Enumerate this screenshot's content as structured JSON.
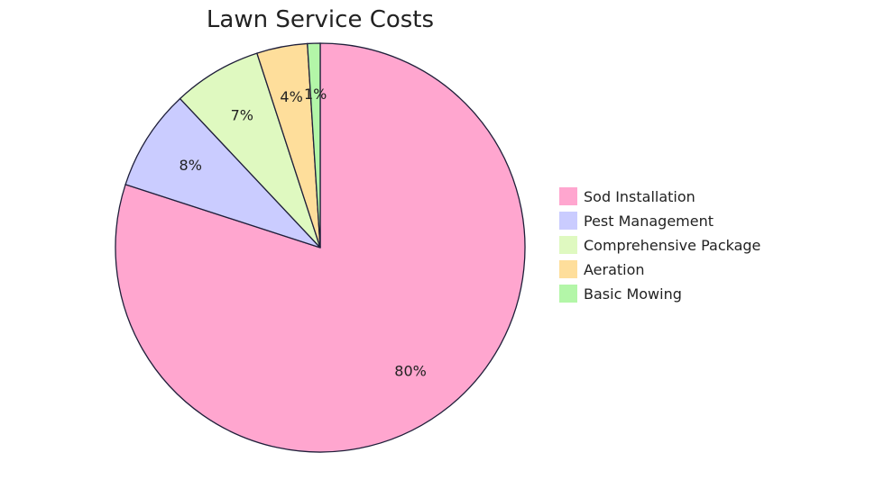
{
  "chart_data": {
    "type": "pie",
    "title": "Lawn Service Costs",
    "legend_position": "right",
    "slices": [
      {
        "name": "Sod Installation",
        "value": 80,
        "label": "80%",
        "color": "#FFA6CF"
      },
      {
        "name": "Pest Management",
        "value": 8,
        "label": "8%",
        "color": "#CACCFF"
      },
      {
        "name": "Comprehensive Package",
        "value": 7,
        "label": "7%",
        "color": "#DFF9C0"
      },
      {
        "name": "Aeration",
        "value": 4,
        "label": "4%",
        "color": "#FEDE9B"
      },
      {
        "name": "Basic Mowing",
        "value": 1,
        "label": "1%",
        "color": "#B3F6A8"
      }
    ],
    "border_color": "#1F1F3A"
  }
}
